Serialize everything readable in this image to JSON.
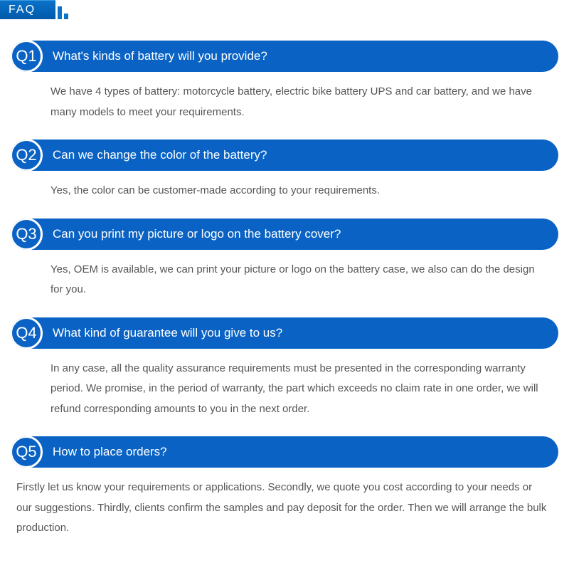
{
  "header": {
    "title": "FAQ",
    "tab_bg_gradient_top": "#0a73c9",
    "tab_bg_gradient_bottom": "#0059a9",
    "tab_text_color": "#ffffff",
    "tab_fontsize": 16,
    "tab_letter_spacing": 2
  },
  "styles": {
    "pill_bg": "#0a63c4",
    "pill_text_color": "#ffffff",
    "pill_radius": 22,
    "pill_height": 44,
    "badge_border_color": "#ffffff",
    "badge_fontsize": 22,
    "question_fontsize": 17,
    "answer_color": "#555555",
    "answer_fontsize": 15,
    "answer_line_height": 1.9,
    "page_bg": "#ffffff"
  },
  "faq": [
    {
      "id": "Q1",
      "question": "What's kinds of battery will you provide?",
      "answer": "We have 4 types of battery: motorcycle battery, electric bike battery UPS and car battery, and we have many models to meet your requirements."
    },
    {
      "id": "Q2",
      "question": "Can we change the color of the battery?",
      "answer": "Yes, the color can be customer-made according to your requirements."
    },
    {
      "id": "Q3",
      "question": "Can you print my picture or logo on the battery cover?",
      "answer": "Yes, OEM is available, we can print your picture or logo on the battery case, we also can do the design for you."
    },
    {
      "id": "Q4",
      "question": "What kind of guarantee will you give to us?",
      "answer": "In any case, all the quality assurance requirements must be presented in the corresponding warranty period. We promise, in the period of warranty, the part which exceeds no claim rate in one order, we will refund corresponding amounts to you in the next order."
    },
    {
      "id": "Q5",
      "question": "How to place orders?",
      "answer": "Firstly let us know your requirements or applications. Secondly, we quote you cost according to your needs or our suggestions. Thirdly, clients confirm the samples and pay deposit for the order. Then we will arrange the bulk production."
    }
  ]
}
